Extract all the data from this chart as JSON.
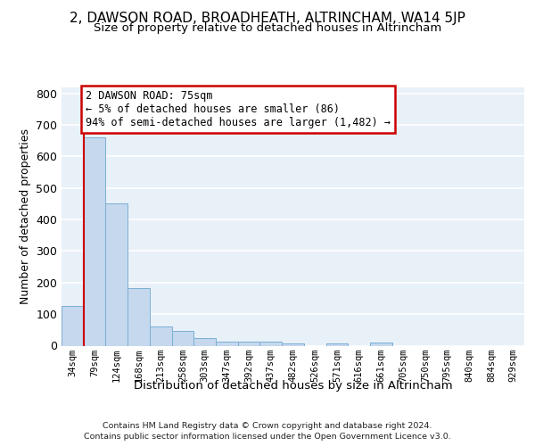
{
  "title": "2, DAWSON ROAD, BROADHEATH, ALTRINCHAM, WA14 5JP",
  "subtitle": "Size of property relative to detached houses in Altrincham",
  "xlabel": "Distribution of detached houses by size in Altrincham",
  "ylabel": "Number of detached properties",
  "footer_line1": "Contains HM Land Registry data © Crown copyright and database right 2024.",
  "footer_line2": "Contains public sector information licensed under the Open Government Licence v3.0.",
  "categories": [
    "34sqm",
    "79sqm",
    "124sqm",
    "168sqm",
    "213sqm",
    "258sqm",
    "303sqm",
    "347sqm",
    "392sqm",
    "437sqm",
    "482sqm",
    "526sqm",
    "571sqm",
    "616sqm",
    "661sqm",
    "705sqm",
    "750sqm",
    "795sqm",
    "840sqm",
    "884sqm",
    "929sqm"
  ],
  "values": [
    127,
    660,
    450,
    183,
    62,
    48,
    25,
    12,
    13,
    13,
    8,
    0,
    8,
    0,
    9,
    0,
    0,
    0,
    0,
    0,
    0
  ],
  "bar_color": "#c5d8ee",
  "bar_edge_color": "#7bafd4",
  "vline_color": "#cc0000",
  "annotation_line1": "2 DAWSON ROAD: 75sqm",
  "annotation_line2": "← 5% of detached houses are smaller (86)",
  "annotation_line3": "94% of semi-detached houses are larger (1,482) →",
  "ann_box_facecolor": "#ffffff",
  "ann_box_edgecolor": "#cc0000",
  "ylim": [
    0,
    820
  ],
  "yticks": [
    0,
    100,
    200,
    300,
    400,
    500,
    600,
    700,
    800
  ],
  "bg_color": "#e8f0f8",
  "grid_color": "#ffffff"
}
